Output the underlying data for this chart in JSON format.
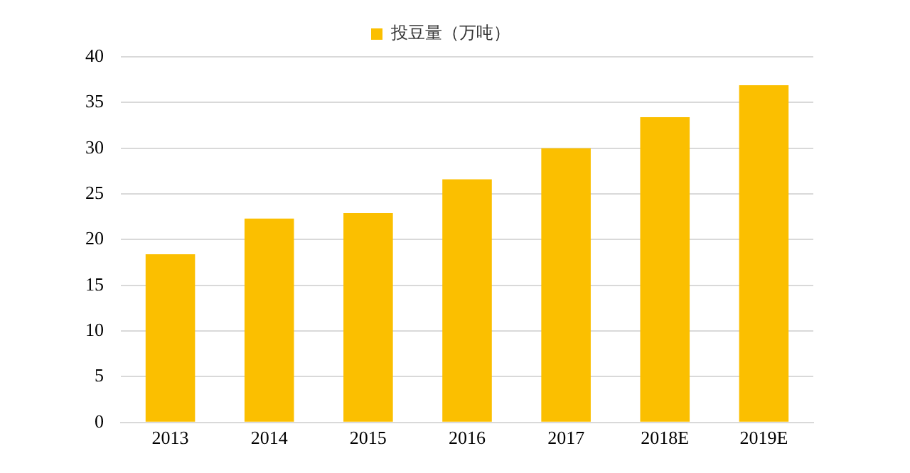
{
  "chart_data": {
    "type": "bar",
    "categories": [
      "2013",
      "2014",
      "2015",
      "2016",
      "2017",
      "2018E",
      "2019E"
    ],
    "series": [
      {
        "name": "投豆量（万吨）",
        "color": "#fbbf00",
        "values": [
          18.4,
          22.3,
          22.9,
          26.6,
          30.0,
          33.4,
          36.9
        ]
      }
    ],
    "ylim": [
      0,
      40
    ],
    "yticks": [
      0,
      5,
      10,
      15,
      20,
      25,
      30,
      35,
      40
    ],
    "grid": "y",
    "legend": "top"
  }
}
